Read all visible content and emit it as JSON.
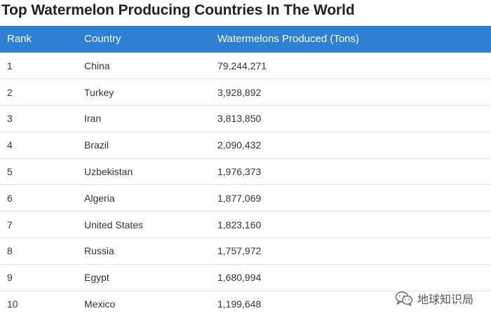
{
  "title": "Top Watermelon Producing Countries In The World",
  "table": {
    "headers": [
      "Rank",
      "Country",
      "Watermelons Produced (Tons)"
    ],
    "rows": [
      [
        "1",
        "China",
        "79,244,271"
      ],
      [
        "2",
        "Turkey",
        "3,928,892"
      ],
      [
        "3",
        "Iran",
        "3,813,850"
      ],
      [
        "4",
        "Brazil",
        "2,090,432"
      ],
      [
        "5",
        "Uzbekistan",
        "1,976,373"
      ],
      [
        "6",
        "Algeria",
        "1,877,069"
      ],
      [
        "7",
        "United States",
        "1,823,160"
      ],
      [
        "8",
        "Russia",
        "1,757,972"
      ],
      [
        "9",
        "Egypt",
        "1,680,994"
      ],
      [
        "10",
        "Mexico",
        "1,199,648"
      ]
    ]
  },
  "watermark": {
    "icon": "wechat-icon",
    "text": "地球知识局"
  },
  "colors": {
    "header_bg": "#2f7fd3",
    "header_text": "#ffffff",
    "row_border": "#e3e3e3"
  }
}
